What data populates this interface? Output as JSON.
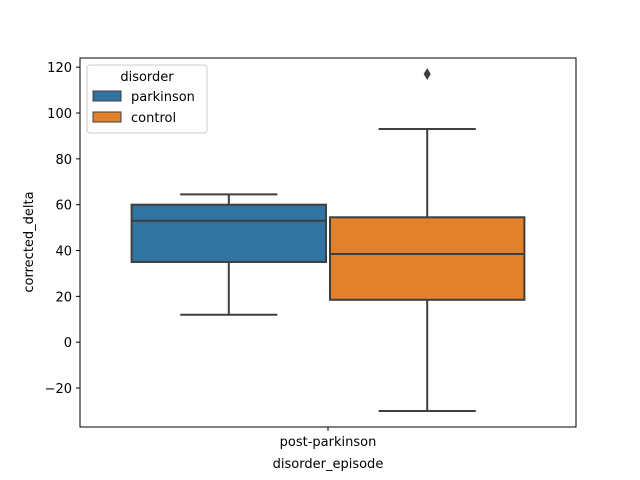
{
  "chart_data": {
    "type": "box",
    "title": "",
    "xlabel": "disorder_episode",
    "ylabel": "corrected_delta",
    "categories": [
      "post-parkinson"
    ],
    "ylim": [
      -37,
      124
    ],
    "yticks": [
      -20,
      0,
      20,
      40,
      60,
      80,
      100,
      120
    ],
    "grid": false,
    "legend": {
      "title": "disorder",
      "placement": "top-left"
    },
    "series": [
      {
        "name": "parkinson",
        "color": "#3274a1",
        "category": "post-parkinson",
        "whisker_low": 12,
        "q1": 35,
        "median": 53,
        "q3": 60,
        "whisker_high": 64.5,
        "outliers": []
      },
      {
        "name": "control",
        "color": "#e1812c",
        "category": "post-parkinson",
        "whisker_low": -30,
        "q1": 18.5,
        "median": 38.5,
        "q3": 54.5,
        "whisker_high": 93,
        "outliers": [
          117
        ]
      }
    ]
  }
}
